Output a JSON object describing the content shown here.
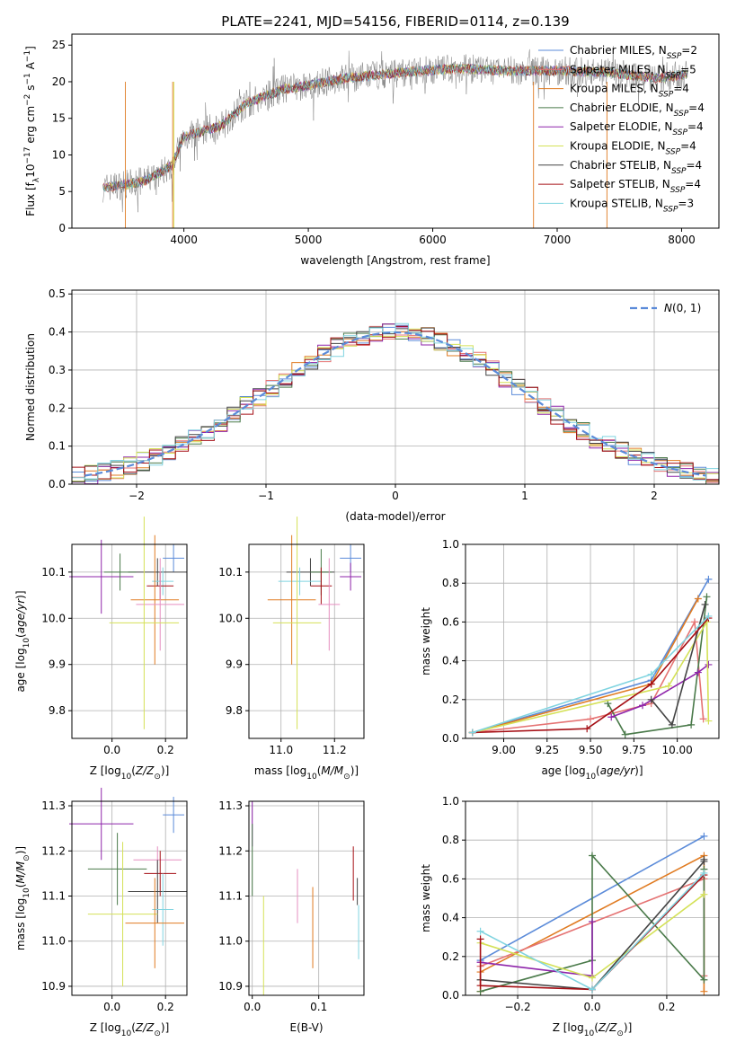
{
  "figure_title": "PLATE=2241, MJD=54156, FIBERID=0114, z=0.139",
  "colors": {
    "Chabrier MILES": "#5b8bd9",
    "Salpeter MILES": "#e57373",
    "Kroupa MILES": "#e07b22",
    "Chabrier ELODIE": "#4a7a4a",
    "Salpeter ELODIE": "#8e24aa",
    "Kroupa ELODIE": "#d4e157",
    "Chabrier STELIB": "#444444",
    "Salpeter STELIB": "#a50f15",
    "Kroupa STELIB": "#80d4e0",
    "Chabrier MILES (alt)": "#e68fc0",
    "data": "#808080",
    "gaussian": "#5b8bd9"
  },
  "chart_data": [
    {
      "id": "spectrum",
      "type": "line",
      "xlabel": "wavelength [Angstrom, rest frame]",
      "ylabel": "Flux [f_λ 10^-17 erg cm^-2 s^-1 A^-1]",
      "xlim": [
        3100,
        8300
      ],
      "ylim": [
        0,
        26.5
      ],
      "xticks": [
        4000,
        5000,
        6000,
        7000,
        8000
      ],
      "yticks": [
        0,
        5,
        10,
        15,
        20,
        25
      ],
      "legend_position": "upper-right",
      "continuum": {
        "x": [
          3350,
          3550,
          3700,
          3900,
          4000,
          4300,
          4500,
          4800,
          5000,
          5300,
          5600,
          5900,
          6200,
          6600,
          7000,
          7400,
          7800,
          8050
        ],
        "y": [
          5.5,
          6.0,
          6.5,
          8.5,
          12.5,
          14.0,
          17.0,
          19.0,
          19.5,
          20.5,
          21.0,
          21.5,
          21.8,
          21.5,
          21.5,
          21.3,
          20.5,
          21.0
        ]
      },
      "x_range": [
        3350,
        8050
      ],
      "series": [
        {
          "name": "Chabrier MILES, N_SSP=2"
        },
        {
          "name": "Salpeter MILES, N_SSP=5"
        },
        {
          "name": "Kroupa MILES, N_SSP=4"
        },
        {
          "name": "Chabrier ELODIE, N_SSP=4"
        },
        {
          "name": "Salpeter ELODIE, N_SSP=4"
        },
        {
          "name": "Kroupa ELODIE, N_SSP=4"
        },
        {
          "name": "Chabrier STELIB, N_SSP=4"
        },
        {
          "name": "Salpeter STELIB, N_SSP=4"
        },
        {
          "name": "Kroupa STELIB, N_SSP=3"
        }
      ]
    },
    {
      "id": "residuals",
      "type": "histogram",
      "xlabel": "(data-model)/error",
      "ylabel": "Normed distribution",
      "xlim": [
        -2.5,
        2.5
      ],
      "ylim": [
        0,
        0.51
      ],
      "xticks": [
        -2,
        -1,
        0,
        1,
        2
      ],
      "yticks": [
        0.0,
        0.1,
        0.2,
        0.3,
        0.4,
        0.5
      ],
      "legend": "N(0,1)",
      "bins": 50,
      "reference_curve": "gaussian N(0,1)"
    },
    {
      "id": "age-vs-Z",
      "type": "errorbar",
      "xlabel": "Z [log10(Z/Z_sun)]",
      "ylabel": "age [log10(age/yr)]",
      "xlim": [
        -0.15,
        0.28
      ],
      "ylim": [
        9.74,
        10.16
      ],
      "xticks": [
        0.0,
        0.2
      ],
      "yticks": [
        9.8,
        9.9,
        10.0,
        10.1
      ],
      "points": [
        {
          "series": "Chabrier MILES",
          "x": 0.23,
          "y": 10.13,
          "xerr": 0.04,
          "yerr": 0.03
        },
        {
          "series": "Salpeter ELODIE",
          "x": -0.04,
          "y": 10.09,
          "xerr": 0.12,
          "yerr": 0.08
        },
        {
          "series": "Chabrier STELIB",
          "x": 0.17,
          "y": 10.1,
          "xerr": 0.11,
          "yerr": 0.03
        },
        {
          "series": "Chabrier ELODIE",
          "x": 0.03,
          "y": 10.1,
          "xerr": 0.06,
          "yerr": 0.04
        },
        {
          "series": "Kroupa STELIB",
          "x": 0.19,
          "y": 10.08,
          "xerr": 0.04,
          "yerr": 0.03
        },
        {
          "series": "Salpeter STELIB",
          "x": 0.18,
          "y": 10.07,
          "xerr": 0.05,
          "yerr": 0.03
        },
        {
          "series": "Kroupa MILES",
          "x": 0.16,
          "y": 10.04,
          "xerr": 0.09,
          "yerr": 0.14
        },
        {
          "series": "Chabrier MILES (alt)",
          "x": 0.18,
          "y": 10.03,
          "xerr": 0.09,
          "yerr": 0.1
        },
        {
          "series": "Kroupa ELODIE",
          "x": 0.12,
          "y": 9.99,
          "xerr": 0.13,
          "yerr": 0.23
        }
      ]
    },
    {
      "id": "age-vs-mass",
      "type": "errorbar",
      "xlabel": "mass [log10(M/M_sun)]",
      "ylabel": "",
      "xlim": [
        10.88,
        11.31
      ],
      "ylim": [
        9.74,
        10.16
      ],
      "xticks": [
        11.0,
        11.2
      ],
      "yticks": [
        9.8,
        9.9,
        10.0,
        10.1
      ],
      "points": [
        {
          "series": "Chabrier MILES",
          "x": 11.26,
          "y": 10.13,
          "xerr": 0.04,
          "yerr": 0.03
        },
        {
          "series": "Salpeter ELODIE",
          "x": 11.26,
          "y": 10.09,
          "xerr": 0.04,
          "yerr": 0.03
        },
        {
          "series": "Chabrier STELIB",
          "x": 11.11,
          "y": 10.1,
          "xerr": 0.09,
          "yerr": 0.03
        },
        {
          "series": "Chabrier ELODIE",
          "x": 11.15,
          "y": 10.1,
          "xerr": 0.04,
          "yerr": 0.05
        },
        {
          "series": "Kroupa STELIB",
          "x": 11.07,
          "y": 10.08,
          "xerr": 0.08,
          "yerr": 0.03
        },
        {
          "series": "Salpeter STELIB",
          "x": 11.15,
          "y": 10.07,
          "xerr": 0.04,
          "yerr": 0.04
        },
        {
          "series": "Kroupa MILES",
          "x": 11.04,
          "y": 10.04,
          "xerr": 0.09,
          "yerr": 0.14
        },
        {
          "series": "Chabrier MILES (alt)",
          "x": 11.18,
          "y": 10.03,
          "xerr": 0.04,
          "yerr": 0.1
        },
        {
          "series": "Kroupa ELODIE",
          "x": 11.06,
          "y": 9.99,
          "xerr": 0.09,
          "yerr": 0.23
        }
      ]
    },
    {
      "id": "weight-vs-age",
      "type": "line",
      "xlabel": "age [log10(age/yr)]",
      "ylabel": "mass weight",
      "xlim": [
        8.78,
        10.24
      ],
      "ylim": [
        0,
        1.0
      ],
      "xticks": [
        9.0,
        9.25,
        9.5,
        9.75,
        10.0
      ],
      "yticks": [
        0.0,
        0.2,
        0.4,
        0.6,
        0.8,
        1.0
      ],
      "series": [
        {
          "series": "Chabrier MILES",
          "x": [
            8.82,
            9.85,
            10.18
          ],
          "y": [
            0.03,
            0.3,
            0.82
          ]
        },
        {
          "series": "Salpeter MILES",
          "x": [
            8.82,
            9.5,
            9.85,
            10.1,
            10.15
          ],
          "y": [
            0.03,
            0.1,
            0.18,
            0.6,
            0.1
          ]
        },
        {
          "series": "Kroupa MILES",
          "x": [
            8.82,
            9.85,
            10.12
          ],
          "y": [
            0.03,
            0.28,
            0.72
          ]
        },
        {
          "series": "Chabrier ELODIE",
          "x": [
            9.6,
            9.7,
            10.08,
            10.17
          ],
          "y": [
            0.18,
            0.02,
            0.07,
            0.73
          ]
        },
        {
          "series": "Salpeter ELODIE",
          "x": [
            9.62,
            9.8,
            10.12,
            10.18
          ],
          "y": [
            0.11,
            0.17,
            0.34,
            0.38
          ]
        },
        {
          "series": "Kroupa ELODIE",
          "x": [
            8.82,
            9.95,
            10.17,
            10.18
          ],
          "y": [
            0.03,
            0.27,
            0.6,
            0.09
          ]
        },
        {
          "series": "Chabrier STELIB",
          "x": [
            9.85,
            9.97,
            10.16
          ],
          "y": [
            0.2,
            0.07,
            0.69
          ]
        },
        {
          "series": "Salpeter STELIB",
          "x": [
            8.82,
            9.48,
            9.85,
            10.18
          ],
          "y": [
            0.03,
            0.05,
            0.28,
            0.62
          ]
        },
        {
          "series": "Kroupa STELIB",
          "x": [
            8.82,
            9.85,
            10.18
          ],
          "y": [
            0.03,
            0.33,
            0.63
          ]
        }
      ]
    },
    {
      "id": "mass-vs-Z",
      "type": "errorbar",
      "xlabel": "Z [log10(Z/Z_sun)]",
      "ylabel": "mass [log10(M/M_sun)]",
      "xlim": [
        -0.15,
        0.28
      ],
      "ylim": [
        10.88,
        11.31
      ],
      "xticks": [
        0.0,
        0.2
      ],
      "yticks": [
        10.9,
        11.0,
        11.1,
        11.2,
        11.3
      ],
      "points": [
        {
          "series": "Chabrier MILES",
          "x": 0.23,
          "y": 11.28,
          "xerr": 0.04,
          "yerr": 0.04
        },
        {
          "series": "Salpeter ELODIE",
          "x": -0.04,
          "y": 11.26,
          "xerr": 0.12,
          "yerr": 0.08
        },
        {
          "series": "Chabrier ELODIE",
          "x": 0.02,
          "y": 11.16,
          "xerr": 0.11,
          "yerr": 0.08
        },
        {
          "series": "Chabrier MILES (alt)",
          "x": 0.17,
          "y": 11.18,
          "xerr": 0.09,
          "yerr": 0.03
        },
        {
          "series": "Salpeter STELIB",
          "x": 0.18,
          "y": 11.15,
          "xerr": 0.06,
          "yerr": 0.05
        },
        {
          "series": "Chabrier STELIB",
          "x": 0.17,
          "y": 11.11,
          "xerr": 0.11,
          "yerr": 0.07
        },
        {
          "series": "Kroupa STELIB",
          "x": 0.19,
          "y": 11.07,
          "xerr": 0.04,
          "yerr": 0.08
        },
        {
          "series": "Kroupa ELODIE",
          "x": 0.04,
          "y": 11.06,
          "xerr": 0.13,
          "yerr": 0.16
        },
        {
          "series": "Kroupa MILES",
          "x": 0.16,
          "y": 11.04,
          "xerr": 0.11,
          "yerr": 0.1
        }
      ]
    },
    {
      "id": "mass-vs-EBV",
      "type": "errorbar",
      "xlabel": "E(B-V)",
      "ylabel": "",
      "xlim": [
        -0.005,
        0.168
      ],
      "ylim": [
        10.88,
        11.31
      ],
      "xticks": [
        0.0,
        0.1
      ],
      "yticks": [
        10.9,
        11.0,
        11.1,
        11.2,
        11.3
      ],
      "points": [
        {
          "series": "Salpeter ELODIE",
          "x": 0.0,
          "y": 11.26,
          "yerr": 0.05
        },
        {
          "series": "Chabrier ELODIE",
          "x": 0.0,
          "y": 11.18,
          "yerr": 0.08
        },
        {
          "series": "Chabrier MILES (alt)",
          "x": 0.068,
          "y": 11.1,
          "yerr": 0.06
        },
        {
          "series": "Salpeter STELIB",
          "x": 0.152,
          "y": 11.15,
          "yerr": 0.06
        },
        {
          "series": "Chabrier STELIB",
          "x": 0.158,
          "y": 11.11,
          "yerr": 0.03
        },
        {
          "series": "Kroupa STELIB",
          "x": 0.16,
          "y": 11.02,
          "yerr": 0.06
        },
        {
          "series": "Kroupa MILES",
          "x": 0.091,
          "y": 11.03,
          "yerr": 0.09
        },
        {
          "series": "Kroupa ELODIE",
          "x": 0.017,
          "y": 10.99,
          "yerr": 0.11
        }
      ]
    },
    {
      "id": "weight-vs-Z",
      "type": "line",
      "xlabel": "Z [log10(Z/Z_sun)]",
      "ylabel": "mass weight",
      "xlim": [
        -0.34,
        0.34
      ],
      "ylim": [
        0,
        1.0
      ],
      "xticks": [
        -0.2,
        0.0,
        0.2
      ],
      "yticks": [
        0.0,
        0.2,
        0.4,
        0.6,
        0.8,
        1.0
      ],
      "series": [
        {
          "series": "Chabrier MILES",
          "x": [
            -0.3,
            0.3
          ],
          "y": [
            0.18,
            0.82
          ]
        },
        {
          "series": "Kroupa MILES",
          "x": [
            -0.3,
            -0.3,
            0.3,
            0.3
          ],
          "y": [
            0.02,
            0.12,
            0.72,
            0.02
          ]
        },
        {
          "series": "Salpeter MILES",
          "x": [
            -0.3,
            0.3,
            0.3
          ],
          "y": [
            0.15,
            0.6,
            0.1
          ]
        },
        {
          "series": "Chabrier ELODIE",
          "x": [
            -0.3,
            0.0,
            0.0,
            0.3,
            0.3
          ],
          "y": [
            0.02,
            0.18,
            0.72,
            0.08,
            0.65
          ]
        },
        {
          "series": "Salpeter ELODIE",
          "x": [
            -0.3,
            0.0,
            0.0
          ],
          "y": [
            0.17,
            0.1,
            0.38
          ]
        },
        {
          "series": "Kroupa ELODIE",
          "x": [
            -0.3,
            0.0,
            0.3
          ],
          "y": [
            0.27,
            0.09,
            0.52
          ]
        },
        {
          "series": "Chabrier STELIB",
          "x": [
            -0.3,
            0.0,
            0.3,
            0.3
          ],
          "y": [
            0.08,
            0.03,
            0.69,
            0.7
          ]
        },
        {
          "series": "Salpeter STELIB",
          "x": [
            -0.3,
            -0.3,
            0.0,
            0.3
          ],
          "y": [
            0.29,
            0.05,
            0.03,
            0.62
          ]
        },
        {
          "series": "Kroupa STELIB",
          "x": [
            -0.3,
            0.0,
            0.3
          ],
          "y": [
            0.33,
            0.03,
            0.63
          ]
        }
      ]
    }
  ]
}
